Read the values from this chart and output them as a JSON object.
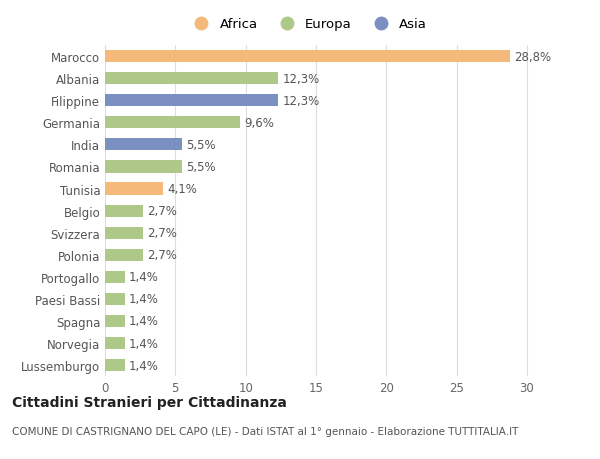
{
  "categories": [
    "Lussemburgo",
    "Norvegia",
    "Spagna",
    "Paesi Bassi",
    "Portogallo",
    "Polonia",
    "Svizzera",
    "Belgio",
    "Tunisia",
    "Romania",
    "India",
    "Germania",
    "Filippine",
    "Albania",
    "Marocco"
  ],
  "values": [
    1.4,
    1.4,
    1.4,
    1.4,
    1.4,
    2.7,
    2.7,
    2.7,
    4.1,
    5.5,
    5.5,
    9.6,
    12.3,
    12.3,
    28.8
  ],
  "colors": [
    "#adc888",
    "#adc888",
    "#adc888",
    "#adc888",
    "#adc888",
    "#adc888",
    "#adc888",
    "#adc888",
    "#f5b97a",
    "#adc888",
    "#7b8fc0",
    "#adc888",
    "#7b8fc0",
    "#adc888",
    "#f5b97a"
  ],
  "africa_color": "#f5b97a",
  "europa_color": "#adc888",
  "asia_color": "#7b8fc0",
  "labels": [
    "1,4%",
    "1,4%",
    "1,4%",
    "1,4%",
    "1,4%",
    "2,7%",
    "2,7%",
    "2,7%",
    "4,1%",
    "5,5%",
    "5,5%",
    "9,6%",
    "12,3%",
    "12,3%",
    "28,8%"
  ],
  "legend": [
    {
      "label": "Africa",
      "color": "#f5b97a"
    },
    {
      "label": "Europa",
      "color": "#adc888"
    },
    {
      "label": "Asia",
      "color": "#7b8fc0"
    }
  ],
  "title": "Cittadini Stranieri per Cittadinanza",
  "subtitle": "COMUNE DI CASTRIGNANO DEL CAPO (LE) - Dati ISTAT al 1° gennaio - Elaborazione TUTTITALIA.IT",
  "xlim": [
    0,
    32
  ],
  "xticks": [
    0,
    5,
    10,
    15,
    20,
    25,
    30
  ],
  "background_color": "#ffffff",
  "grid_color": "#dddddd",
  "bar_height": 0.55,
  "label_fontsize": 8.5,
  "tick_fontsize": 8.5,
  "title_fontsize": 10,
  "subtitle_fontsize": 7.5
}
